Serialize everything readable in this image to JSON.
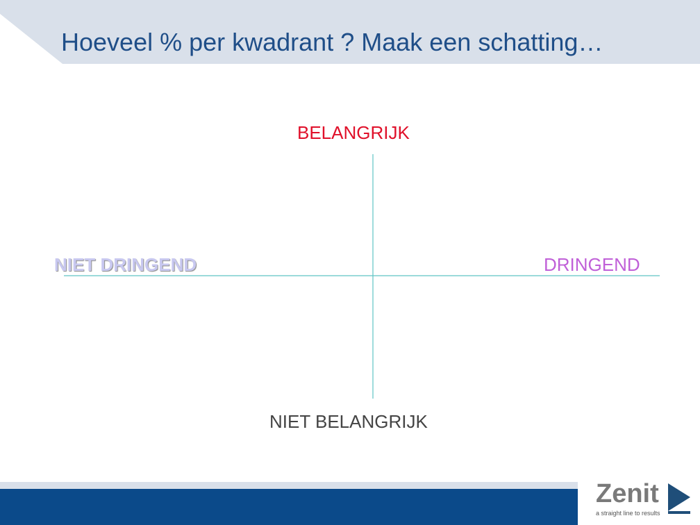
{
  "header": {
    "title": "Hoeveel % per kwadrant ? Maak een schatting…"
  },
  "quadrant": {
    "top": "BELANGRIJK",
    "left": "NIET DRINGEND",
    "right": "DRINGEND",
    "bottom": "NIET BELANGRIJK"
  },
  "logo": {
    "name": "Zenit",
    "tagline": "a straight line to results"
  }
}
